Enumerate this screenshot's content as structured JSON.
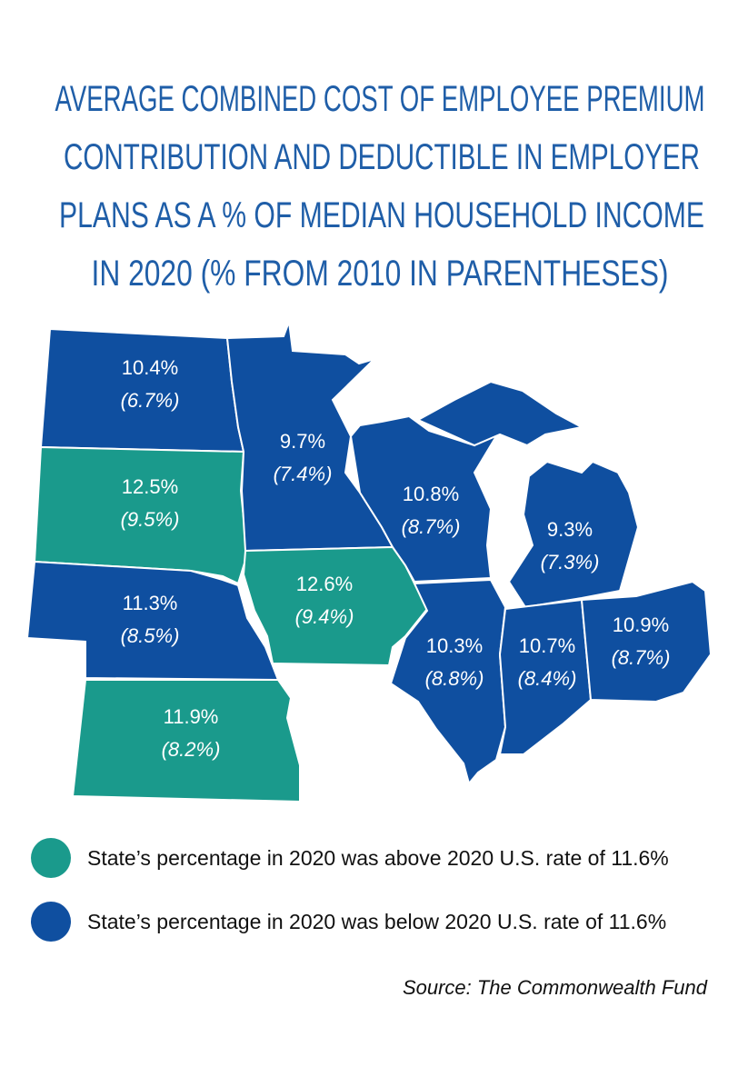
{
  "title_lines": [
    "AVERAGE COMBINED COST OF EMPLOYEE PREMIUM",
    "CONTRIBUTION AND DEDUCTIBLE IN EMPLOYER",
    "PLANS AS A % OF MEDIAN HOUSEHOLD INCOME",
    "IN 2020 (% FROM 2010 IN PARENTHESES)"
  ],
  "states": [
    {
      "value_2020": "10.4%",
      "value_2010": "(6.7%)",
      "color": "#0f4fa0"
    },
    {
      "value_2020": "12.5%",
      "value_2010": "(9.5%)",
      "color": "#1a9a8c"
    },
    {
      "value_2020": "11.3%",
      "value_2010": "(8.5%)",
      "color": "#0f4fa0"
    },
    {
      "value_2020": "11.9%",
      "value_2010": "(8.2%)",
      "color": "#1a9a8c"
    },
    {
      "value_2020": "9.7%",
      "value_2010": "(7.4%)",
      "color": "#0f4fa0"
    },
    {
      "value_2020": "12.6%",
      "value_2010": "(9.4%)",
      "color": "#1a9a8c"
    },
    {
      "value_2020": "10.8%",
      "value_2010": "(8.7%)",
      "color": "#0f4fa0"
    },
    {
      "value_2020": "9.3%",
      "value_2010": "(7.3%)",
      "color": "#0f4fa0"
    },
    {
      "value_2020": "10.3%",
      "value_2010": "(8.8%)",
      "color": "#0f4fa0"
    },
    {
      "value_2020": "10.7%",
      "value_2010": "(8.4%)",
      "color": "#0f4fa0"
    },
    {
      "value_2020": "10.9%",
      "value_2010": "(8.7%)",
      "color": "#0f4fa0"
    }
  ],
  "legend": [
    {
      "label": "State’s percentage in 2020 was above 2020 U.S. rate of 11.6%",
      "color": "#1a9a8c"
    },
    {
      "label": "State’s percentage in 2020 was below 2020 U.S. rate of 11.6%",
      "color": "#0f4fa0"
    }
  ],
  "source": "Source: The Commonwealth Fund"
}
